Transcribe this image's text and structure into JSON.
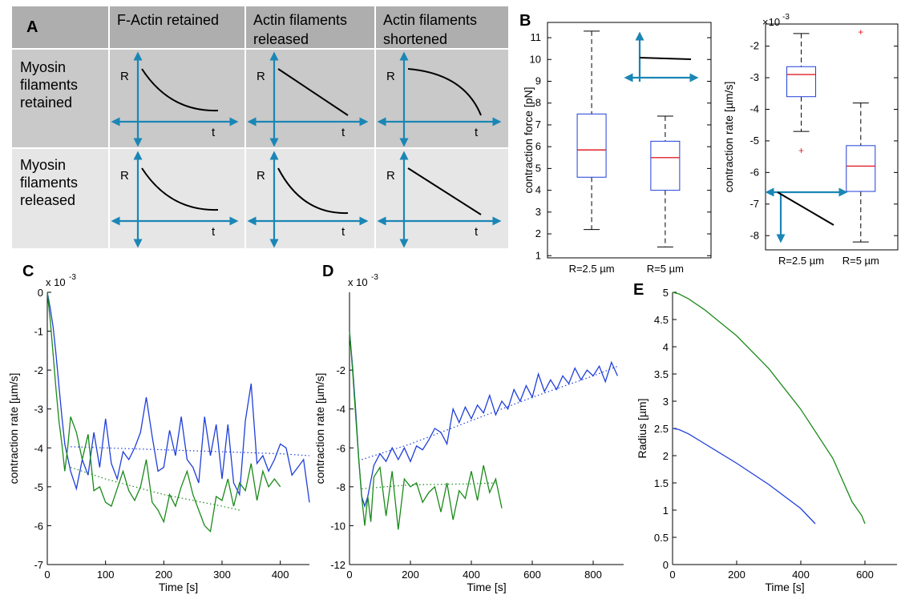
{
  "panel_labels": {
    "A": "A",
    "B": "B",
    "C": "C",
    "D": "D",
    "E": "E"
  },
  "table": {
    "corner": "A",
    "col_headers": [
      "F-Actin retained",
      [
        "Actin filaments",
        "released"
      ],
      [
        "Actin filaments",
        "shortened"
      ]
    ],
    "row_headers": [
      [
        "Myosin",
        "filaments",
        "retained"
      ],
      [
        "Myosin",
        "filaments",
        "released"
      ]
    ],
    "cells": [
      [
        {
          "shape": "concave"
        },
        {
          "shape": "linear"
        },
        {
          "shape": "convex"
        }
      ],
      [
        {
          "shape": "concave"
        },
        {
          "shape": "concave_steep"
        },
        {
          "shape": "linear"
        }
      ]
    ],
    "axis_y_label": "R",
    "axis_x_label": "t",
    "colors": {
      "header_bg": "#aeaeae",
      "row1_bg": "#c9c9c9",
      "row2_bg": "#e6e6e6",
      "arrow": "#1a86b5"
    }
  },
  "chart_data": [
    {
      "id": "B1",
      "type": "boxplot",
      "ylabel": "contraction force [pN]",
      "categories": [
        "R=2.5 µm",
        "R=5 µm"
      ],
      "yticks": [
        1,
        2,
        3,
        4,
        5,
        6,
        7,
        8,
        9,
        10,
        11
      ],
      "ylim": [
        0.9,
        11.7
      ],
      "boxes": [
        {
          "whisker_low": 2.2,
          "q1": 4.6,
          "median": 5.85,
          "q3": 7.5,
          "whisker_high": 11.3,
          "outliers": []
        },
        {
          "whisker_low": 1.4,
          "q1": 4.0,
          "median": 5.5,
          "q3": 6.25,
          "whisker_high": 7.4,
          "outliers": []
        }
      ],
      "colors": {
        "box": "#1f3fd9",
        "median": "#e0202a",
        "whisker": "#000000"
      }
    },
    {
      "id": "B2",
      "type": "boxplot",
      "ylabel": "contraction rate  [µm/s]",
      "exponent": "×10",
      "exponent_power": "-3",
      "categories": [
        "R=2.5 µm",
        "R=5 µm"
      ],
      "yticks": [
        -8,
        -7,
        -6,
        -5,
        -4,
        -3,
        -2
      ],
      "ylim": [
        -8.45,
        -1.3
      ],
      "boxes": [
        {
          "whisker_low": -4.7,
          "q1": -3.6,
          "median": -2.9,
          "q3": -2.65,
          "whisker_high": -1.6,
          "outliers": [
            -5.3
          ]
        },
        {
          "whisker_low": -8.2,
          "q1": -6.6,
          "median": -5.8,
          "q3": -5.15,
          "whisker_high": -3.8,
          "outliers": [
            -1.55
          ]
        }
      ],
      "colors": {
        "box": "#1f3fd9",
        "median": "#e0202a",
        "outlier": "#e0202a"
      }
    },
    {
      "id": "C",
      "type": "line",
      "xlabel": "Time [s]",
      "ylabel": "contraction rate [µm/s]",
      "exponent": "x 10",
      "exponent_power": "-3",
      "xlim": [
        0,
        450
      ],
      "ylim": [
        -7,
        0
      ],
      "xticks": [
        0,
        100,
        200,
        300,
        400
      ],
      "yticks": [
        -7,
        -6,
        -5,
        -4,
        -3,
        -2,
        -1,
        0
      ],
      "series": [
        {
          "color": "#1f3fd9",
          "x": [
            0,
            5,
            10,
            15,
            20,
            25,
            30,
            40,
            50,
            60,
            70,
            80,
            90,
            100,
            110,
            120,
            130,
            140,
            150,
            160,
            170,
            180,
            190,
            200,
            210,
            220,
            230,
            240,
            250,
            260,
            270,
            280,
            290,
            300,
            310,
            320,
            330,
            340,
            350,
            360,
            370,
            380,
            390,
            400,
            410,
            420,
            430,
            440,
            450
          ],
          "y": [
            0,
            -0.4,
            -0.9,
            -1.6,
            -2.4,
            -3.2,
            -3.9,
            -4.6,
            -5.05,
            -4.3,
            -4.7,
            -3.6,
            -4.5,
            -3.25,
            -4.4,
            -4.8,
            -4.1,
            -4.3,
            -4.0,
            -3.6,
            -2.7,
            -3.7,
            -4.6,
            -4.5,
            -3.55,
            -4.2,
            -3.2,
            -4.3,
            -4.5,
            -4.9,
            -3.2,
            -4.2,
            -3.4,
            -4.8,
            -3.4,
            -4.9,
            -5.2,
            -3.3,
            -2.35,
            -4.4,
            -4.2,
            -4.6,
            -4.3,
            -3.9,
            -4.0,
            -4.7,
            -4.5,
            -4.3,
            -5.4
          ]
        },
        {
          "color": "#1f3fd9",
          "dotted": true,
          "x": [
            40,
            100,
            200,
            300,
            400,
            450
          ],
          "y": [
            -3.97,
            -4.0,
            -4.05,
            -4.1,
            -4.15,
            -4.2
          ]
        },
        {
          "color": "#1a8a1a",
          "x": [
            0,
            5,
            10,
            15,
            20,
            25,
            30,
            35,
            40,
            50,
            60,
            70,
            80,
            90,
            100,
            110,
            120,
            130,
            140,
            150,
            160,
            170,
            180,
            190,
            200,
            210,
            220,
            230,
            240,
            250,
            260,
            270,
            280,
            290,
            300,
            310,
            320,
            330,
            340,
            350,
            360,
            370,
            380,
            390,
            400
          ],
          "y": [
            0,
            -0.7,
            -1.6,
            -2.5,
            -3.3,
            -3.9,
            -4.6,
            -4.0,
            -3.2,
            -3.6,
            -4.3,
            -3.65,
            -5.1,
            -5.0,
            -5.4,
            -5.5,
            -5.05,
            -4.6,
            -5.1,
            -5.35,
            -5.0,
            -4.3,
            -5.4,
            -5.6,
            -5.9,
            -5.2,
            -5.5,
            -5.0,
            -4.6,
            -5.2,
            -5.6,
            -6.0,
            -6.15,
            -5.25,
            -5.35,
            -4.8,
            -5.5,
            -4.9,
            -5.1,
            -4.4,
            -5.35,
            -4.6,
            -5.0,
            -4.8,
            -5.0
          ]
        },
        {
          "color": "#1a8a1a",
          "dotted": true,
          "x": [
            40,
            100,
            200,
            300,
            330
          ],
          "y": [
            -4.5,
            -4.8,
            -5.2,
            -5.5,
            -5.6
          ]
        }
      ]
    },
    {
      "id": "D",
      "type": "line",
      "xlabel": "Time [s]",
      "ylabel": "contraction rate [µm/s]",
      "exponent": "x 10",
      "exponent_power": "-3",
      "xlim": [
        0,
        900
      ],
      "ylim": [
        -12,
        2
      ],
      "xticks": [
        0,
        200,
        400,
        600,
        800
      ],
      "yticks": [
        -12,
        -10,
        -8,
        -6,
        -4,
        -2
      ],
      "series": [
        {
          "color": "#1f3fd9",
          "x": [
            0,
            10,
            20,
            30,
            40,
            50,
            60,
            80,
            100,
            120,
            140,
            160,
            180,
            200,
            220,
            240,
            260,
            280,
            300,
            320,
            340,
            360,
            380,
            400,
            420,
            440,
            460,
            480,
            500,
            520,
            540,
            560,
            580,
            600,
            620,
            640,
            660,
            680,
            700,
            720,
            740,
            760,
            780,
            800,
            820,
            840,
            860,
            880
          ],
          "y": [
            0,
            -1.8,
            -4.0,
            -6.5,
            -8.5,
            -9.0,
            -8.5,
            -6.9,
            -6.3,
            -6.7,
            -6.0,
            -6.6,
            -6.0,
            -6.7,
            -5.9,
            -6.1,
            -5.6,
            -5.0,
            -5.2,
            -5.8,
            -4.0,
            -4.7,
            -3.9,
            -4.5,
            -3.8,
            -4.2,
            -3.3,
            -4.3,
            -3.6,
            -4.0,
            -3.0,
            -3.6,
            -2.8,
            -3.4,
            -2.2,
            -3.1,
            -2.5,
            -3.0,
            -2.3,
            -2.7,
            -1.9,
            -2.5,
            -2.0,
            -2.3,
            -1.8,
            -2.6,
            -1.6,
            -2.3
          ]
        },
        {
          "color": "#1f3fd9",
          "dotted": true,
          "x": [
            40,
            200,
            400,
            600,
            800,
            880
          ],
          "y": [
            -6.6,
            -5.8,
            -4.6,
            -3.4,
            -2.3,
            -1.8
          ]
        },
        {
          "color": "#1a8a1a",
          "x": [
            0,
            10,
            20,
            30,
            40,
            50,
            60,
            70,
            80,
            100,
            120,
            140,
            160,
            180,
            200,
            220,
            240,
            260,
            280,
            300,
            320,
            340,
            360,
            380,
            400,
            420,
            440,
            460,
            480,
            500
          ],
          "y": [
            0,
            -2.0,
            -4.3,
            -6.5,
            -8.5,
            -10.0,
            -8.5,
            -9.8,
            -7.5,
            -7.0,
            -9.5,
            -7.2,
            -10.2,
            -7.6,
            -8.0,
            -7.8,
            -8.8,
            -8.3,
            -8.0,
            -9.3,
            -7.8,
            -9.7,
            -8.2,
            -8.6,
            -7.2,
            -8.7,
            -6.9,
            -8.3,
            -7.6,
            -9.1
          ]
        },
        {
          "color": "#1a8a1a",
          "dotted": true,
          "x": [
            40,
            200,
            400,
            480
          ],
          "y": [
            -8.1,
            -7.9,
            -7.85,
            -7.8
          ]
        }
      ]
    },
    {
      "id": "E",
      "type": "line",
      "xlabel": "Time [s]",
      "ylabel": "Radius [µm]",
      "xlim": [
        0,
        700
      ],
      "ylim": [
        0,
        5
      ],
      "xticks": [
        0,
        200,
        400,
        600
      ],
      "yticks": [
        0,
        0.5,
        1,
        1.5,
        2,
        2.5,
        3,
        3.5,
        4,
        4.5,
        5
      ],
      "series": [
        {
          "color": "#1f3fd9",
          "x": [
            0,
            20,
            50,
            100,
            200,
            300,
            400,
            445
          ],
          "y": [
            2.5,
            2.48,
            2.4,
            2.22,
            1.86,
            1.47,
            1.03,
            0.75
          ]
        },
        {
          "color": "#1a8a1a",
          "x": [
            0,
            20,
            50,
            100,
            200,
            300,
            400,
            500,
            560,
            590,
            600
          ],
          "y": [
            5.0,
            4.97,
            4.88,
            4.68,
            4.2,
            3.6,
            2.85,
            1.95,
            1.15,
            0.9,
            0.75
          ]
        }
      ]
    }
  ]
}
